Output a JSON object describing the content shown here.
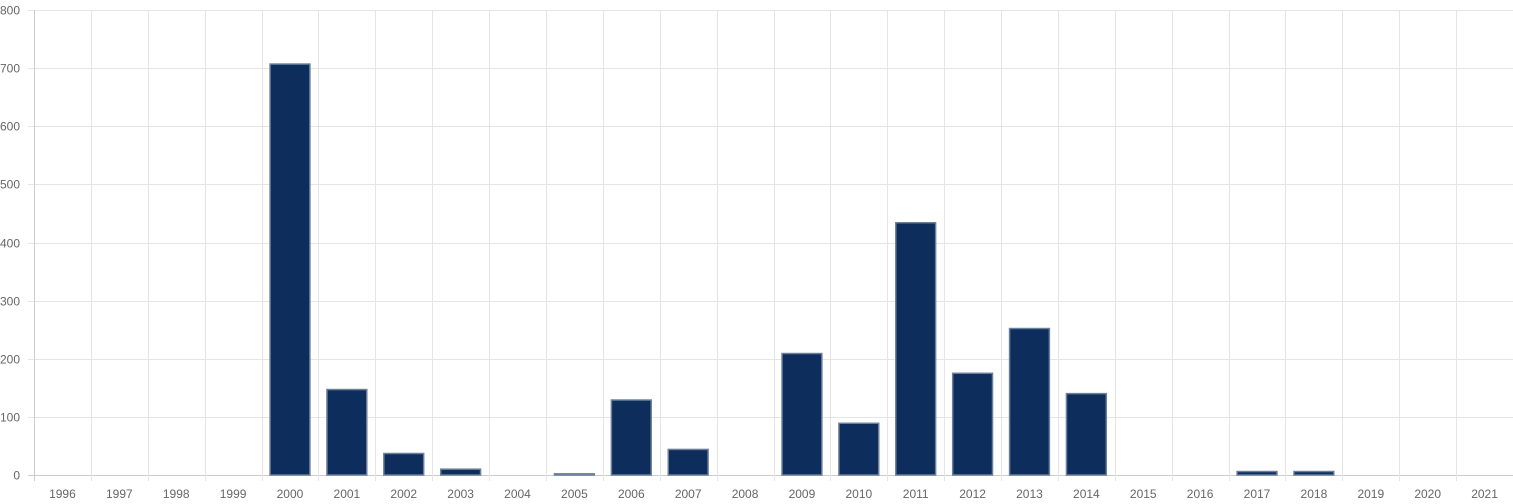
{
  "chart_data": {
    "type": "bar",
    "categories": [
      "1996",
      "1997",
      "1998",
      "1999",
      "2000",
      "2001",
      "2002",
      "2003",
      "2004",
      "2005",
      "2006",
      "2007",
      "2008",
      "2009",
      "2010",
      "2011",
      "2012",
      "2013",
      "2014",
      "2015",
      "2016",
      "2017",
      "2018",
      "2019",
      "2020",
      "2021"
    ],
    "series": [
      {
        "values": [
          0,
          0,
          0,
          0,
          707,
          147,
          37,
          10,
          0,
          2,
          129,
          44,
          0,
          209,
          89,
          434,
          175,
          252,
          140,
          0,
          0,
          6,
          6,
          0,
          0,
          0
        ],
        "color": "#0d2d5c",
        "border_color": "#6b7f99"
      }
    ],
    "ylim": [
      0,
      800
    ],
    "yticks": [
      0,
      100,
      200,
      300,
      400,
      500,
      600,
      700,
      800
    ],
    "ytick_labels": [
      "0",
      "100",
      "200",
      "300",
      "400",
      "500",
      "600",
      "700",
      "800"
    ],
    "grid": true,
    "grid_color": "#e5e5e5",
    "axis_color": "#cccccc",
    "tick_label_color": "#666666",
    "legend": "none",
    "title": "",
    "xlabel": "",
    "ylabel": ""
  }
}
